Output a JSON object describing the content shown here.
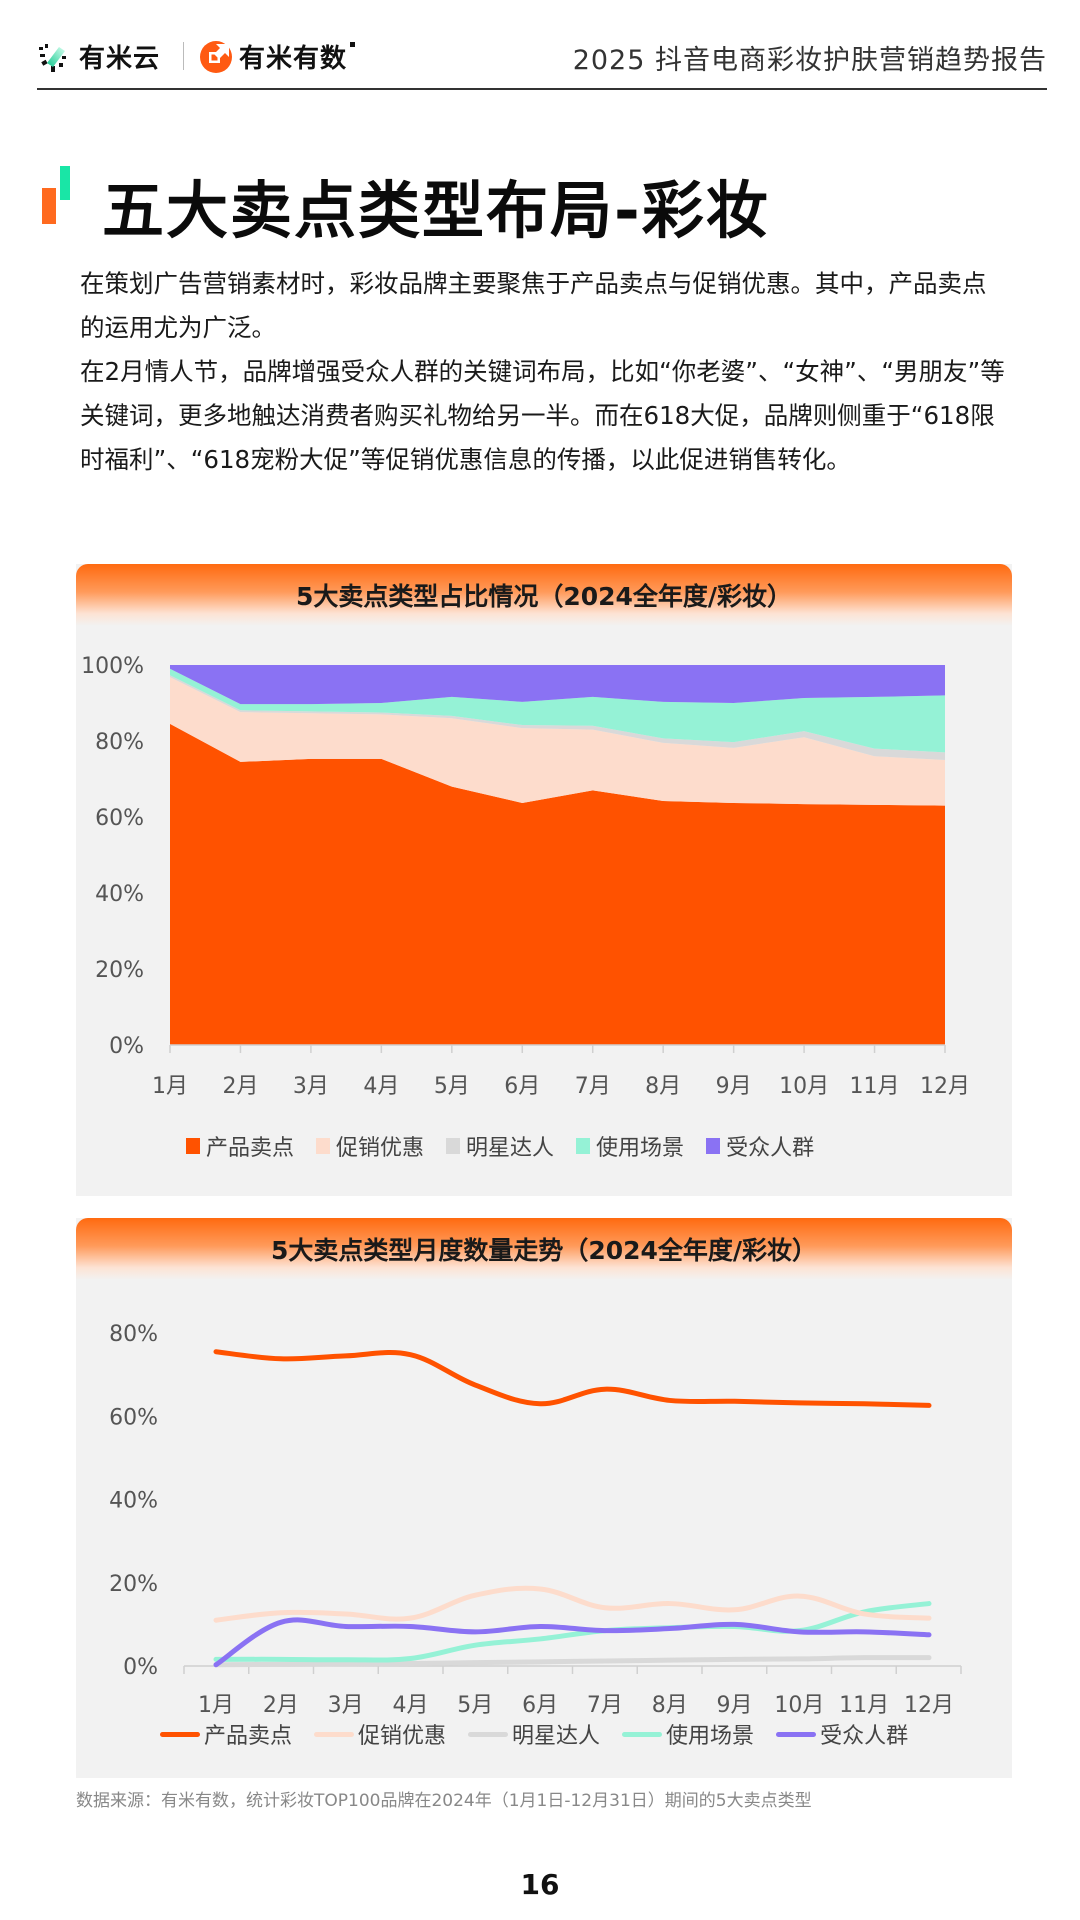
{
  "header": {
    "logo_left": "有米云",
    "logo_right": "有米有数",
    "report_title": "2025 抖音电商彩妆护肤营销趋势报告"
  },
  "page_title": "五大卖点类型布局-彩妆",
  "body": {
    "paragraphs": [
      "在策划广告营销素材时，彩妆品牌主要聚焦于产品卖点与促销优惠。其中，产品卖点的运用尤为广泛。",
      "在2月情人节，品牌增强受众人群的关键词布局，比如“你老婆”、“女神”、“男朋友”等关键词，更多地触达消费者购买礼物给另一半。而在618大促，品牌则侧重于“618限时福利”、“618宠粉大促”等促销优惠信息的传播，以此促进销售转化。"
    ]
  },
  "colors": {
    "product": "#ff5200",
    "promo": "#fddccc",
    "celebrity": "#d9d9d9",
    "scene": "#95f2d6",
    "audience": "#8a72f3",
    "card_bg": "#f2f2f2",
    "accent_orange": "#ff6a1f",
    "accent_green": "#19e6a6"
  },
  "chart_data": [
    {
      "type": "area",
      "stacked": "percent",
      "title": "5大卖点类型占比情况（2024全年度/彩妆）",
      "xlabel": "",
      "ylabel": "",
      "categories": [
        "1月",
        "2月",
        "3月",
        "4月",
        "5月",
        "6月",
        "7月",
        "8月",
        "9月",
        "10月",
        "11月",
        "12月"
      ],
      "yticks": [
        "0%",
        "20%",
        "40%",
        "60%",
        "80%",
        "100%"
      ],
      "ylim": [
        0,
        100
      ],
      "legend_position": "bottom",
      "series": [
        {
          "name": "产品卖点",
          "values": [
            84.5,
            74.5,
            75.3,
            75.3,
            68.0,
            63.7,
            67.0,
            64.2,
            63.7,
            63.4,
            63.2,
            63.0
          ]
        },
        {
          "name": "促销优惠",
          "values": [
            12.3,
            13.1,
            12.0,
            11.7,
            18.0,
            19.7,
            16.0,
            15.3,
            14.5,
            17.6,
            12.8,
            12.0
          ]
        },
        {
          "name": "明星达人",
          "values": [
            0.5,
            0.5,
            0.5,
            0.5,
            0.6,
            0.8,
            1.0,
            1.2,
            1.5,
            1.6,
            2.0,
            2.0
          ]
        },
        {
          "name": "使用场景",
          "values": [
            1.7,
            1.6,
            1.9,
            2.5,
            5.0,
            6.1,
            7.6,
            9.6,
            10.3,
            8.7,
            13.6,
            15.0
          ]
        },
        {
          "name": "受众人群",
          "values": [
            1.0,
            10.3,
            10.3,
            10.0,
            8.4,
            9.7,
            8.4,
            9.7,
            10.0,
            8.7,
            8.4,
            8.0
          ]
        }
      ]
    },
    {
      "type": "line",
      "title": "5大卖点类型月度数量走势（2024全年度/彩妆）",
      "xlabel": "",
      "ylabel": "",
      "categories": [
        "1月",
        "2月",
        "3月",
        "4月",
        "5月",
        "6月",
        "7月",
        "8月",
        "9月",
        "10月",
        "11月",
        "12月"
      ],
      "yticks": [
        "0%",
        "20%",
        "40%",
        "60%",
        "80%"
      ],
      "ylim": [
        0,
        80
      ],
      "legend_position": "bottom",
      "series": [
        {
          "name": "产品卖点",
          "values": [
            75.5,
            73.8,
            74.5,
            74.8,
            67.5,
            63.0,
            66.5,
            63.8,
            63.6,
            63.2,
            63.0,
            62.6
          ]
        },
        {
          "name": "促销优惠",
          "values": [
            11.0,
            12.8,
            12.5,
            11.5,
            17.0,
            18.5,
            14.0,
            15.0,
            13.5,
            16.8,
            12.5,
            11.5
          ]
        },
        {
          "name": "明星达人",
          "values": [
            0.3,
            0.4,
            0.5,
            0.6,
            0.8,
            1.0,
            1.2,
            1.4,
            1.6,
            1.7,
            2.0,
            2.0
          ]
        },
        {
          "name": "使用场景",
          "values": [
            1.6,
            1.6,
            1.5,
            1.8,
            5.0,
            6.5,
            8.5,
            9.2,
            9.5,
            8.5,
            13.0,
            15.0
          ]
        },
        {
          "name": "受众人群",
          "values": [
            0.3,
            10.5,
            9.5,
            9.5,
            8.2,
            9.5,
            8.5,
            9.0,
            10.0,
            8.2,
            8.2,
            7.5
          ]
        }
      ]
    }
  ],
  "charts": {
    "stacked": {
      "title": "5大卖点类型占比情况（2024全年度/彩妆）",
      "legend": [
        "产品卖点",
        "促销优惠",
        "明星达人",
        "使用场景",
        "受众人群"
      ]
    },
    "line": {
      "title": "5大卖点类型月度数量走势（2024全年度/彩妆）",
      "legend": [
        "产品卖点",
        "促销优惠",
        "明星达人",
        "使用场景",
        "受众人群"
      ]
    }
  },
  "footnote": "数据来源：有米有数，统计彩妆TOP100品牌在2024年（1月1日-12月31日）期间的5大卖点类型",
  "page_number": "16"
}
